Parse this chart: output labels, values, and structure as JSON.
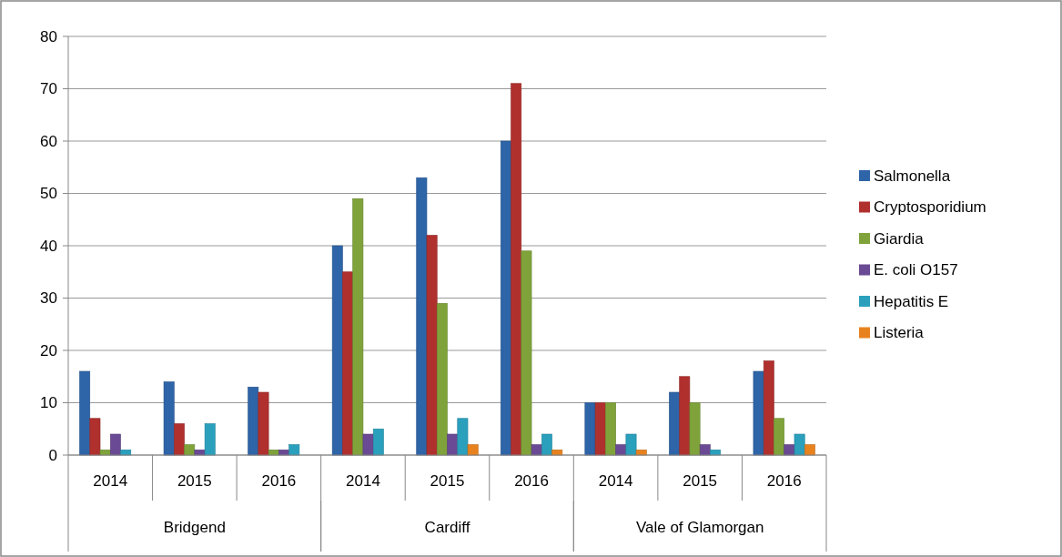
{
  "chart_data": {
    "type": "bar",
    "categories": [
      "2014",
      "2015",
      "2016",
      "2014",
      "2015",
      "2016",
      "2014",
      "2015",
      "2016"
    ],
    "annotations": [
      "Bridgend",
      "Cardiff",
      "Vale of Glamorgan"
    ],
    "series": [
      {
        "name": "Salmonella",
        "color": "#2e64a8",
        "values": [
          16,
          14,
          13,
          40,
          53,
          60,
          10,
          12,
          16
        ]
      },
      {
        "name": "Cryptosporidium",
        "color": "#b0302e",
        "values": [
          7,
          6,
          12,
          35,
          42,
          71,
          10,
          15,
          18
        ]
      },
      {
        "name": "Giardia",
        "color": "#7fa33a",
        "values": [
          1,
          2,
          1,
          49,
          29,
          39,
          10,
          10,
          7
        ]
      },
      {
        "name": "E. coli O157",
        "color": "#6a4a94",
        "values": [
          4,
          1,
          1,
          4,
          4,
          2,
          2,
          2,
          2
        ]
      },
      {
        "name": "Hepatitis E",
        "color": "#2aa0bd",
        "values": [
          1,
          6,
          2,
          5,
          7,
          4,
          4,
          1,
          4
        ]
      },
      {
        "name": "Listeria",
        "color": "#e8821e",
        "values": [
          0,
          0,
          0,
          0,
          2,
          1,
          1,
          0,
          2
        ]
      }
    ],
    "ylim": [
      0,
      80
    ],
    "yticks": [
      0,
      10,
      20,
      30,
      40,
      50,
      60,
      70,
      80
    ],
    "grid": "y",
    "legend": "right"
  }
}
